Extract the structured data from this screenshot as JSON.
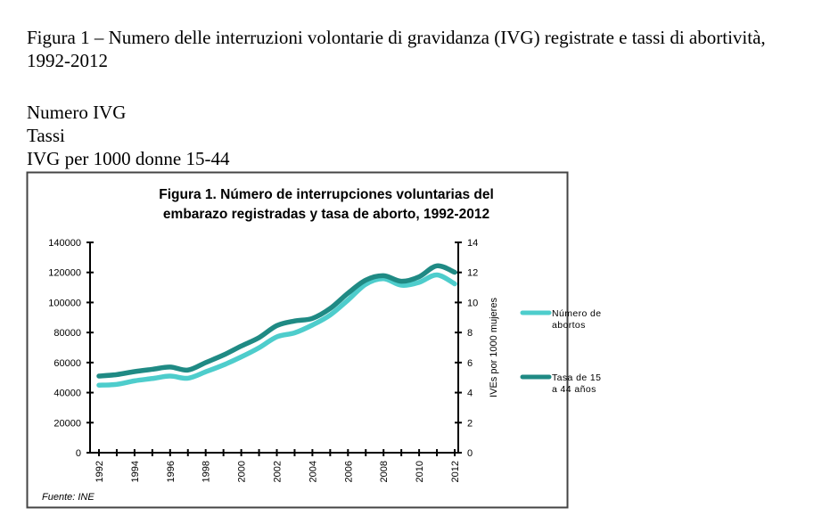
{
  "document": {
    "caption": "Figura 1 – Numero delle interruzioni volontarie di gravidanza (IVG) registrate e tassi di abortività, 1992-2012",
    "label_numero": "Numero IVG",
    "label_tassi": "Tassi",
    "label_tassi_unit": "IVG per 1000 donne 15-44"
  },
  "chart_data": {
    "type": "line",
    "title_line1": "Figura 1.  Número de interrupciones voluntarias del",
    "title_line2": "embarazo registradas y tasa de aborto, 1992-2012",
    "xlabel": "",
    "ylabel": "",
    "y2label": "IVEs por 1000 mujeres",
    "source": "Fuente: INE",
    "x": [
      1992,
      1993,
      1994,
      1995,
      1996,
      1997,
      1998,
      1999,
      2000,
      2001,
      2002,
      2003,
      2004,
      2005,
      2006,
      2007,
      2008,
      2009,
      2010,
      2011,
      2012
    ],
    "x_tick_labels": [
      "1992",
      "1994",
      "1996",
      "1998",
      "2000",
      "2002",
      "2004",
      "2006",
      "2008",
      "2010",
      "2012"
    ],
    "ylim": [
      0,
      140000
    ],
    "y_ticks": [
      "0",
      "20000",
      "40000",
      "60000",
      "80000",
      "100000",
      "120000",
      "140000"
    ],
    "y2lim": [
      0,
      14
    ],
    "y2_ticks": [
      "0",
      "2",
      "4",
      "6",
      "8",
      "10",
      "12",
      "14"
    ],
    "grid": false,
    "legend_position": "right",
    "series": [
      {
        "name": "Número de abortos",
        "axis": "left",
        "color": "#4ecdcc",
        "values": [
          44962,
          45503,
          47832,
          49367,
          51002,
          49578,
          53847,
          58399,
          63756,
          69857,
          77125,
          79788,
          84985,
          91664,
          101592,
          112138,
          115812,
          111482,
          113419,
          118359,
          112390
        ]
      },
      {
        "name": "Tasa de 15 a 44 años",
        "axis": "right",
        "color": "#1f8a84",
        "values": [
          5.1,
          5.2,
          5.4,
          5.55,
          5.7,
          5.5,
          6.0,
          6.5,
          7.1,
          7.66,
          8.46,
          8.77,
          8.94,
          9.6,
          10.62,
          11.49,
          11.78,
          11.41,
          11.71,
          12.44,
          12.01
        ]
      }
    ]
  }
}
